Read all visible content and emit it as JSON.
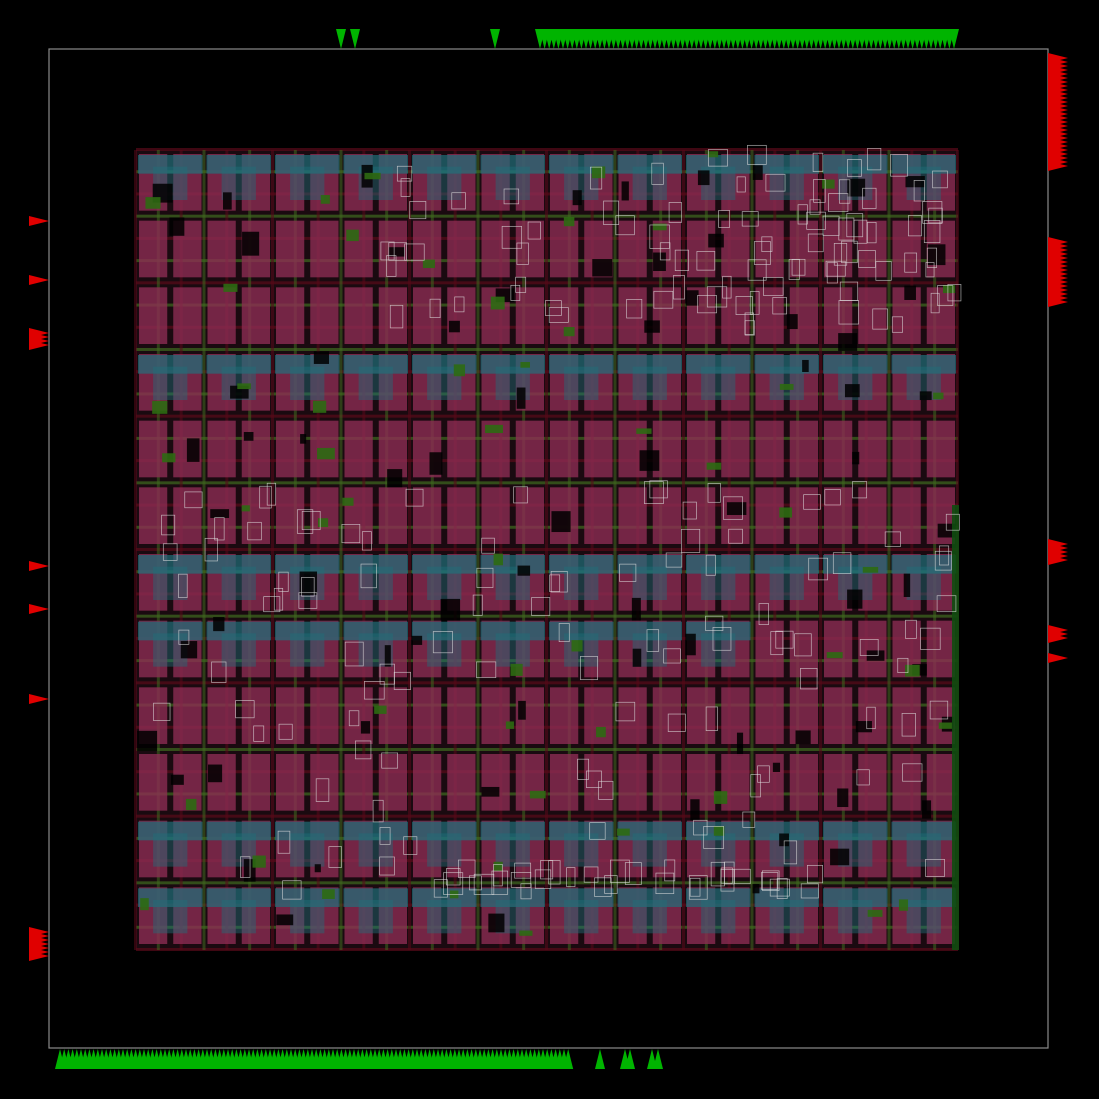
{
  "view": {
    "type": "chip-layout-view",
    "background_color": "#000000",
    "die_outline_color": "#8a8a8a",
    "core_area": {
      "tile_columns": 12,
      "tile_rows": 12,
      "cell_color_magenta": "#8e2d55",
      "cell_color_teal": "#1f6f7a",
      "wire_color_green": "#3f6a1f",
      "wire_color_dark_red": "#5a0a1a",
      "outline_color": "#e0e0e0"
    },
    "pins": {
      "top_pin_color": "#00b400",
      "bottom_pin_color": "#00b400",
      "left_pin_color": "#e00000",
      "right_pin_color": "#e00000",
      "top_pin_count": 96,
      "bottom_pin_count": 132,
      "left_pin_count": 28,
      "right_pin_count": 68
    }
  }
}
